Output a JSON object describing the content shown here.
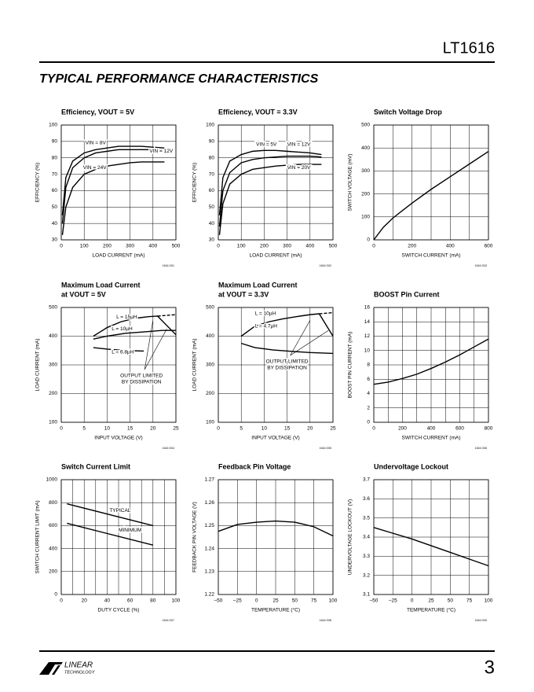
{
  "header": {
    "part": "LT1616"
  },
  "section_title": "TYPICAL PERFORMANCE CHARACTERISTICS",
  "chart_data": [
    {
      "type": "line",
      "title": [
        "Efficiency, VOUT = 5V"
      ],
      "xlabel": "LOAD CURRENT (mA)",
      "ylabel": "EFFICIENCY (%)",
      "code": "1616 G01",
      "xlim": [
        0,
        500
      ],
      "xticks": [
        0,
        100,
        200,
        300,
        400,
        500
      ],
      "ylim": [
        30,
        100
      ],
      "yticks": [
        30,
        40,
        50,
        60,
        70,
        80,
        90,
        100
      ],
      "grid": true,
      "series": [
        {
          "name": "VIN = 8V",
          "color": "#000000",
          "x": [
            5,
            20,
            50,
            100,
            150,
            200,
            250,
            300,
            350,
            400,
            450
          ],
          "values": [
            45,
            68,
            78,
            83,
            85,
            86,
            87,
            87,
            87,
            86.5,
            86
          ]
        },
        {
          "name": "VIN = 12V",
          "color": "#000000",
          "x": [
            5,
            20,
            50,
            100,
            150,
            200,
            250,
            300,
            350,
            400,
            450
          ],
          "values": [
            40,
            62,
            74,
            80,
            83,
            84,
            85,
            85,
            85,
            85,
            85
          ]
        },
        {
          "name": "VIN = 24V",
          "color": "#000000",
          "x": [
            5,
            20,
            50,
            100,
            150,
            200,
            250,
            300,
            350,
            400,
            450
          ],
          "values": [
            33,
            50,
            62,
            70,
            73,
            75,
            76,
            77,
            77.5,
            77.5,
            77.5
          ]
        }
      ]
    },
    {
      "type": "line",
      "title": [
        "Efficiency, VOUT = 3.3V"
      ],
      "xlabel": "LOAD CURRENT (mA)",
      "ylabel": "EFFICIENCY (%)",
      "code": "1616 G02",
      "xlim": [
        0,
        500
      ],
      "xticks": [
        0,
        100,
        200,
        300,
        400,
        500
      ],
      "ylim": [
        30,
        100
      ],
      "yticks": [
        30,
        40,
        50,
        60,
        70,
        80,
        90,
        100
      ],
      "grid": true,
      "series": [
        {
          "name": "VIN = 5V",
          "color": "#000000",
          "x": [
            5,
            20,
            50,
            100,
            150,
            200,
            250,
            300,
            350,
            400,
            450
          ],
          "values": [
            45,
            68,
            78,
            82,
            84,
            84.5,
            84.5,
            84,
            83.5,
            83,
            82
          ]
        },
        {
          "name": "VIN = 12V",
          "color": "#000000",
          "x": [
            5,
            20,
            50,
            100,
            150,
            200,
            250,
            300,
            350,
            400,
            450
          ],
          "values": [
            38,
            60,
            71,
            77,
            79,
            80,
            80.5,
            81,
            81,
            81,
            80.5
          ]
        },
        {
          "name": "VIN = 20V",
          "color": "#000000",
          "x": [
            5,
            20,
            50,
            100,
            150,
            200,
            250,
            300,
            350,
            400,
            450
          ],
          "values": [
            33,
            52,
            64,
            70,
            73,
            74,
            75,
            75.5,
            76,
            76,
            76
          ]
        }
      ]
    },
    {
      "type": "line",
      "title": [
        "Switch Voltage Drop"
      ],
      "xlabel": "SWITCH CURRENT (mA)",
      "ylabel": "SWITCH VOLTAGE (mV)",
      "code": "1616 G03",
      "xlim": [
        0,
        600
      ],
      "xticks": [
        0,
        200,
        400,
        600
      ],
      "xgrid_minor": [
        100,
        300,
        500
      ],
      "ylim": [
        0,
        500
      ],
      "yticks": [
        0,
        100,
        200,
        300,
        400,
        500
      ],
      "grid": true,
      "series": [
        {
          "color": "#000000",
          "x": [
            0,
            50,
            100,
            200,
            300,
            400,
            500,
            600
          ],
          "values": [
            0,
            55,
            95,
            160,
            220,
            275,
            330,
            385
          ]
        }
      ]
    },
    {
      "type": "line",
      "title": [
        "Maximum Load Current",
        "at VOUT = 5V"
      ],
      "xlabel": "INPUT VOLTAGE (V)",
      "ylabel": "LOAD CURRENT (mA)",
      "code": "1616 G04",
      "xlim": [
        0,
        25
      ],
      "xticks": [
        0,
        5,
        10,
        15,
        20,
        25
      ],
      "ylim": [
        100,
        500
      ],
      "yticks": [
        100,
        200,
        300,
        400,
        500
      ],
      "grid": true,
      "annotation": [
        "OUTPUT LIMITED",
        "BY DISSIPATION"
      ],
      "series": [
        {
          "name": "L = 15µH",
          "color": "#000000",
          "x": [
            7,
            10,
            13,
            16,
            19,
            21,
            25
          ],
          "values": [
            400,
            430,
            450,
            462,
            468,
            470,
            405
          ]
        },
        {
          "name": "L = 10µH",
          "color": "#000000",
          "x": [
            7,
            10,
            14,
            18,
            22,
            25
          ],
          "values": [
            390,
            400,
            410,
            415,
            420,
            420
          ]
        },
        {
          "name": "L = 6.8µH",
          "color": "#000000",
          "x": [
            7,
            10,
            14,
            18
          ],
          "values": [
            360,
            355,
            350,
            348
          ]
        },
        {
          "color": "#000000",
          "dashed": true,
          "x": [
            21,
            25
          ],
          "values": [
            470,
            475
          ]
        }
      ]
    },
    {
      "type": "line",
      "title": [
        "Maximum Load Current",
        "at VOUT = 3.3V"
      ],
      "xlabel": "INPUT VOLTAGE (V)",
      "ylabel": "LOAD CURRENT (mA)",
      "code": "1616 G05",
      "xlim": [
        0,
        25
      ],
      "xticks": [
        0,
        5,
        10,
        15,
        20,
        25
      ],
      "ylim": [
        100,
        500
      ],
      "yticks": [
        100,
        200,
        300,
        400,
        500
      ],
      "grid": true,
      "annotation": [
        "OUTPUT LIMITED",
        "BY DISSIPATION"
      ],
      "series": [
        {
          "name": "L = 10µH",
          "color": "#000000",
          "x": [
            5,
            8,
            11,
            14,
            17,
            20,
            22,
            25
          ],
          "values": [
            400,
            435,
            450,
            460,
            468,
            475,
            478,
            400
          ]
        },
        {
          "name": "L = 4.7µH",
          "color": "#000000",
          "x": [
            5,
            8,
            12,
            16,
            20,
            25
          ],
          "values": [
            375,
            360,
            352,
            347,
            343,
            340
          ]
        },
        {
          "color": "#000000",
          "dashed": true,
          "x": [
            22,
            25
          ],
          "values": [
            478,
            482
          ]
        }
      ]
    },
    {
      "type": "line",
      "title": [
        "BOOST Pin Current"
      ],
      "xlabel": "SWITCH CURRENT (mA)",
      "ylabel": "BOOST PIN CURRENT (mA)",
      "code": "1616 G06",
      "xlim": [
        0,
        800
      ],
      "xticks": [
        0,
        200,
        400,
        600,
        800
      ],
      "xgrid_minor": [
        100,
        300,
        500,
        700
      ],
      "ylim": [
        0,
        16
      ],
      "yticks": [
        0,
        2,
        4,
        6,
        8,
        10,
        12,
        14,
        16
      ],
      "grid": true,
      "series": [
        {
          "color": "#000000",
          "x": [
            0,
            100,
            200,
            300,
            400,
            500,
            600,
            700,
            800
          ],
          "values": [
            5.3,
            5.6,
            6.1,
            6.7,
            7.5,
            8.4,
            9.4,
            10.5,
            11.6
          ]
        }
      ]
    },
    {
      "type": "line",
      "title": [
        "Switch Current Limit"
      ],
      "xlabel": "DUTY CYCLE (%)",
      "ylabel": "SWITCH CURRENT LIMIT (mA)",
      "code": "1616 G07",
      "xlim": [
        0,
        100
      ],
      "xticks": [
        0,
        20,
        40,
        60,
        80,
        100
      ],
      "xgrid_minor": [
        10,
        30,
        50,
        70,
        90
      ],
      "ylim": [
        0,
        1000
      ],
      "yticks": [
        0,
        200,
        400,
        600,
        800,
        1000
      ],
      "grid": true,
      "series": [
        {
          "name": "TYPICAL",
          "color": "#000000",
          "x": [
            5,
            80
          ],
          "values": [
            790,
            600
          ]
        },
        {
          "name": "MINIMUM",
          "color": "#000000",
          "x": [
            5,
            80
          ],
          "values": [
            620,
            430
          ]
        }
      ]
    },
    {
      "type": "line",
      "title": [
        "Feedback Pin Voltage"
      ],
      "xlabel": "TEMPERATURE (°C)",
      "ylabel": "FEEDBACK PIN VOLTAGE (V)",
      "code": "1616 G08",
      "xlim": [
        -50,
        100
      ],
      "xticks": [
        {
          "value": -50,
          "label": "–50"
        },
        {
          "value": -25,
          "label": "–25"
        },
        0,
        25,
        50,
        75,
        100
      ],
      "ylim": [
        1.22,
        1.27
      ],
      "yticks": [
        1.22,
        1.23,
        1.24,
        1.25,
        1.26,
        1.27
      ],
      "grid": true,
      "series": [
        {
          "color": "#000000",
          "x": [
            -50,
            -25,
            0,
            25,
            50,
            75,
            100
          ],
          "values": [
            1.2475,
            1.2505,
            1.2515,
            1.252,
            1.2515,
            1.2495,
            1.2455
          ]
        }
      ]
    },
    {
      "type": "line",
      "title": [
        "Undervoltage Lockout"
      ],
      "xlabel": "TEMPERATURE (°C)",
      "ylabel": "UNDERVOLTAGE LOCKOUT (V)",
      "code": "1616 G09",
      "xlim": [
        -50,
        100
      ],
      "xticks": [
        {
          "value": -50,
          "label": "–50"
        },
        {
          "value": -25,
          "label": "–25"
        },
        0,
        25,
        50,
        75,
        100
      ],
      "ylim": [
        3.1,
        3.7
      ],
      "yticks": [
        3.1,
        3.2,
        3.3,
        3.4,
        3.5,
        3.6,
        3.7
      ],
      "grid": true,
      "series": [
        {
          "color": "#000000",
          "x": [
            -50,
            -25,
            0,
            25,
            50,
            75,
            100
          ],
          "values": [
            3.45,
            3.42,
            3.39,
            3.355,
            3.32,
            3.285,
            3.25
          ]
        }
      ]
    }
  ],
  "footer": {
    "logo": [
      "LINEAR",
      "TECHNOLOGY"
    ],
    "page": "3"
  }
}
